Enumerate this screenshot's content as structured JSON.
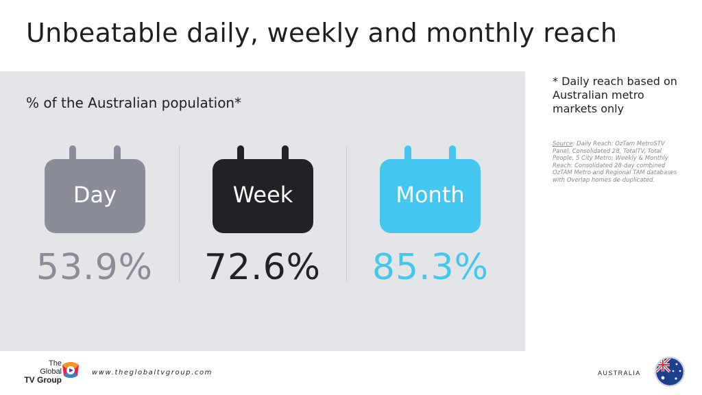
{
  "title": "Unbeatable daily, weekly and monthly reach",
  "subtitle": "% of the Australian population*",
  "reach": [
    {
      "period": "Day",
      "value": "53.9%",
      "color": "#8a8c99"
    },
    {
      "period": "Week",
      "value": "72.6%",
      "color": "#222226"
    },
    {
      "period": "Month",
      "value": "85.3%",
      "color": "#45c6f1"
    }
  ],
  "footnote": "* Daily reach based on Australian metro markets only",
  "source": {
    "label": "Source",
    "text": ": Daily Reach: OzTam MetroSTV Panel, Consolidated 28, TotalTV, Total People, 5 City Metro; Weekly & Monthly Reach: Consolidated 28-day combined OzTAM Metro and Regional TAM databases with Overlap homes de-duplicated."
  },
  "footer": {
    "logo_line1": "The",
    "logo_line2": "Global",
    "logo_line3": "TV Group",
    "website": "www.theglobaltvgroup.com",
    "country": "AUSTRALIA",
    "flag_icon": "australia-flag-icon"
  }
}
